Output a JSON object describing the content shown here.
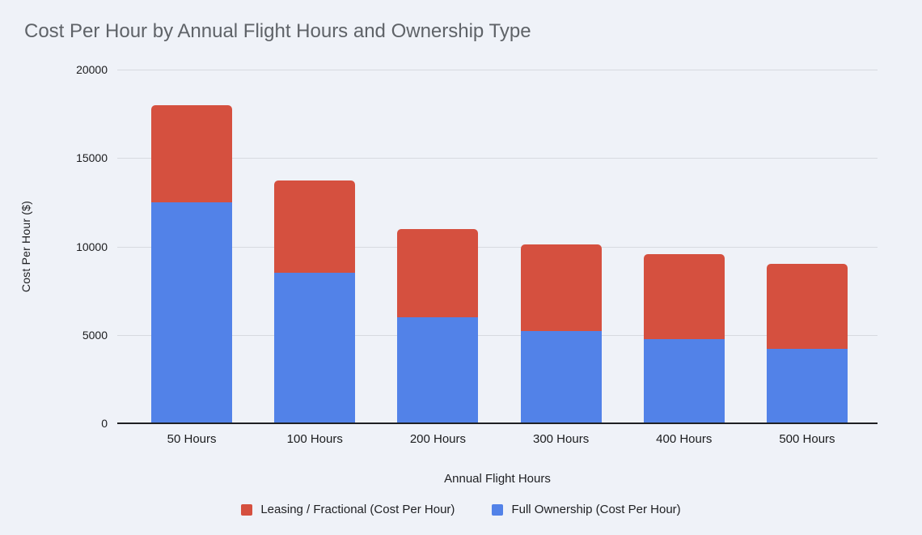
{
  "colors": {
    "background": "#EFF2F8",
    "title_text": "#5F6368",
    "axis_text": "#1B1C1E",
    "gridline": "#D7DAE0",
    "baseline": "#1F2023",
    "series_red": "#D5503F",
    "series_blue": "#5282E8"
  },
  "chart_data": {
    "type": "bar",
    "stacked": true,
    "title": "Cost Per Hour by Annual Flight Hours and Ownership Type",
    "xlabel": "Annual Flight Hours",
    "ylabel": "Cost Per Hour ($)",
    "categories": [
      "50 Hours",
      "100 Hours",
      "200 Hours",
      "300 Hours",
      "400 Hours",
      "500 Hours"
    ],
    "series": [
      {
        "name": "Full Ownership (Cost Per Hour)",
        "color": "#5282E8",
        "stack_position": "bottom",
        "values": [
          12500,
          8500,
          6000,
          5200,
          4750,
          4200
        ]
      },
      {
        "name": "Leasing / Fractional (Cost Per Hour)",
        "color": "#D5503F",
        "stack_position": "top",
        "values": [
          5500,
          5250,
          5000,
          4900,
          4800,
          4800
        ]
      }
    ],
    "stack_totals": [
      18000,
      13750,
      11000,
      10100,
      9550,
      9000
    ],
    "ylim": [
      0,
      20000
    ],
    "yticks": [
      0,
      5000,
      10000,
      15000,
      20000
    ],
    "ytick_labels": [
      "0",
      "5000",
      "10000",
      "15000",
      "20000"
    ],
    "grid": true,
    "legend": {
      "position": "bottom",
      "entries": [
        {
          "label": "Leasing / Fractional (Cost Per Hour)",
          "color": "#D5503F"
        },
        {
          "label": "Full Ownership (Cost Per Hour)",
          "color": "#5282E8"
        }
      ]
    }
  }
}
